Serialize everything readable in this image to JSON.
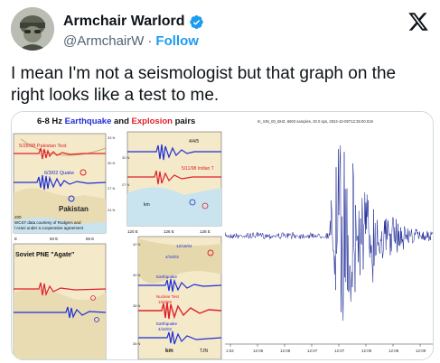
{
  "author": {
    "display_name": "Armchair Warlord",
    "handle": "@ArmchairW",
    "separator": "·",
    "follow_label": "Follow",
    "verified_color": "#1d9bf0"
  },
  "tweet": {
    "text": "I mean I'm not a seismologist but that graph on the right looks like a test to me."
  },
  "image": {
    "left_title_prefix": "6-8 Hz ",
    "left_title_earthquake": "Earthquake",
    "left_title_and": " and ",
    "left_title_explosion": "Explosion",
    "left_title_suffix": " pairs",
    "pakistan_test": "5/28/98 Pakistan Test",
    "quake_label": "6/3/02 Quake",
    "pakistan": "Pakistan",
    "data_credit_1": "200",
    "data_credit_2": "WCST data courtesy of Rodgers and",
    "data_credit_3": "l Arani under a cooperative agreement",
    "soviet_label": "Soviet PNE \"Agate\"",
    "indian_test": "5/11/98 Indian T",
    "earthquake_lbl": "Earthquake",
    "nuclear_test": "Nuclear Test",
    "nuclear_date": "10/9/06",
    "earthquake_date": "12/16/04",
    "earthquake2_date": "4/16/02",
    "date_4_4": "4/4/5",
    "date_4_16": "4/16/02",
    "km": "km",
    "tjn": "TJN",
    "right_header": "III_SIN_00_BHZ, 6903 samples, 20.0 sps, 2024-10-05T12:35:00.019",
    "lat_labels": [
      "33 N",
      "30 N",
      "27 N",
      "24 N"
    ],
    "lat_labels_mid": [
      "30 N",
      "27 N"
    ],
    "lat_labels_korea": [
      "42 N",
      "40 N",
      "38 N",
      "36 N"
    ],
    "lon_labels": [
      "E",
      "60 E",
      "65 E"
    ],
    "lon_labels_2": [
      "120 E",
      "126 E",
      "128 E"
    ],
    "x_ticks": [
      "1:02",
      "12:06",
      "12:08",
      "12:07",
      "12:07",
      "12:09",
      "12:08",
      "12:09"
    ]
  },
  "colors": {
    "text_primary": "#0f1419",
    "text_secondary": "#536471",
    "link": "#1d9bf0",
    "earthquake_blue": "#1f2fd6",
    "explosion_red": "#e0202b",
    "seismo_navy": "#0d1a8c"
  }
}
